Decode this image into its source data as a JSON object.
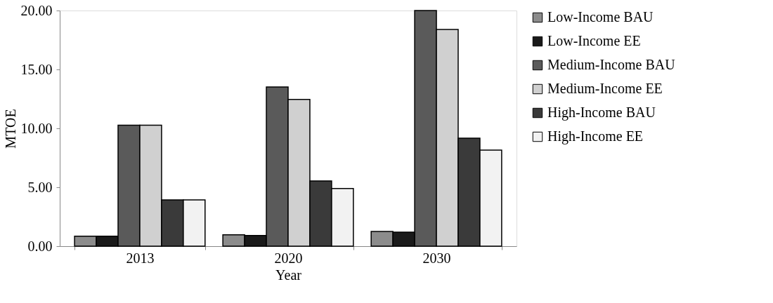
{
  "chart_data": {
    "type": "bar",
    "xlabel": "Year",
    "ylabel": "MTOE",
    "categories": [
      "2013",
      "2020",
      "2030"
    ],
    "series": [
      {
        "name": "Low-Income BAU",
        "color": "#8c8c8c",
        "values": [
          0.85,
          0.97,
          1.25
        ]
      },
      {
        "name": "Low-Income EE",
        "color": "#1a1a1a",
        "values": [
          0.85,
          0.91,
          1.19
        ]
      },
      {
        "name": "Medium-Income BAU",
        "color": "#5a5a5a",
        "values": [
          10.27,
          13.51,
          20.0
        ]
      },
      {
        "name": "Medium-Income EE",
        "color": "#d0d0d0",
        "values": [
          10.27,
          12.45,
          18.39
        ]
      },
      {
        "name": "High-Income BAU",
        "color": "#3a3a3a",
        "values": [
          3.93,
          5.54,
          9.16
        ]
      },
      {
        "name": "High-Income EE",
        "color": "#f2f2f2",
        "values": [
          3.93,
          4.89,
          8.16
        ]
      }
    ],
    "ylim": [
      0,
      20
    ],
    "yticks": [
      {
        "value": 0,
        "label": "0.00"
      },
      {
        "value": 5,
        "label": "5.00"
      },
      {
        "value": 10,
        "label": "10.00"
      },
      {
        "value": 15,
        "label": "15.00"
      },
      {
        "value": 20,
        "label": "20.00"
      }
    ],
    "grid": false,
    "legend": "right"
  }
}
